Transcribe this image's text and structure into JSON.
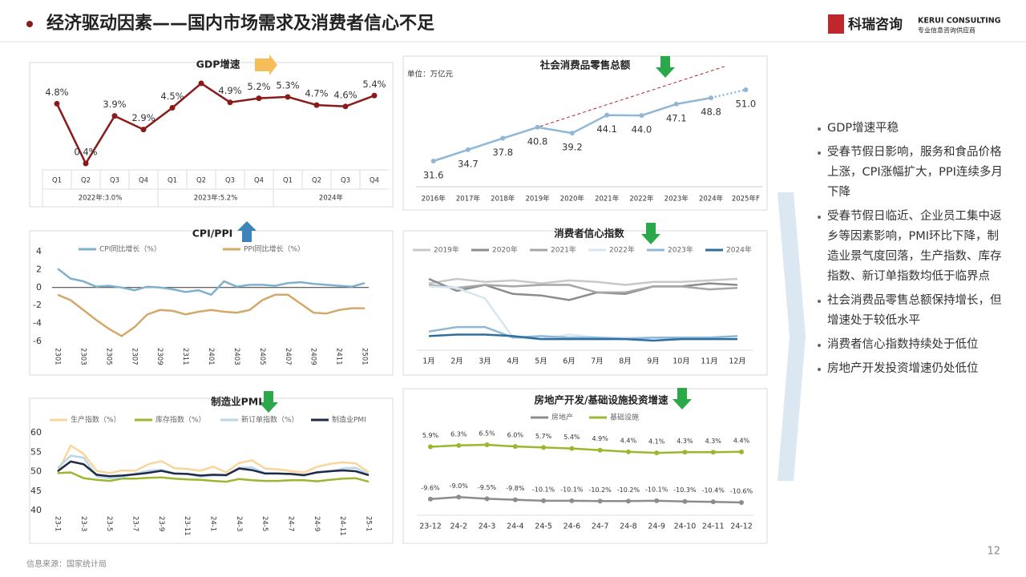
{
  "header": {
    "title": "经济驱动因素——国内市场需求及消费者信心不足",
    "logo_cn": "科瑞咨询",
    "logo_en": "KERUI CONSULTING",
    "logo_tag": "专业信息咨询供应商"
  },
  "chart_data": [
    {
      "type": "line",
      "title": "GDP增速",
      "categories": [
        "Q1",
        "Q2",
        "Q3",
        "Q4",
        "Q1",
        "Q2",
        "Q3",
        "Q4",
        "Q1",
        "Q2",
        "Q3",
        "Q4"
      ],
      "groups": [
        "2022年:3.0%",
        "2023年:5.2%",
        "2024年"
      ],
      "values": [
        4.8,
        0.4,
        3.9,
        2.9,
        4.5,
        6.3,
        4.9,
        5.2,
        5.3,
        4.7,
        4.6,
        5.4
      ],
      "value_labels": [
        "4.8%",
        "0.4%",
        "3.9%",
        "2.9%",
        "4.5%",
        null,
        "4.9%",
        "5.2%",
        "5.3%",
        "4.7%",
        "4.6%",
        "5.4%"
      ],
      "color": "#8b1a1a"
    },
    {
      "type": "line",
      "title": "社会消费品零售总额",
      "unit": "单位：万亿元",
      "categories": [
        "2016年",
        "2017年",
        "2018年",
        "2019年",
        "2020年",
        "2021年",
        "2022年",
        "2023年",
        "2024年",
        "2025年F"
      ],
      "values": [
        31.6,
        34.7,
        37.8,
        40.8,
        39.2,
        44.1,
        44.0,
        47.1,
        48.8,
        51.0
      ],
      "value_labels": [
        "31.6",
        "34.7",
        "37.8",
        "40.8",
        "39.2",
        "44.1",
        "44.0",
        "47.1",
        "48.8",
        "51.0"
      ],
      "color": "#8fb8d8"
    },
    {
      "type": "line",
      "title": "CPI/PPI",
      "categories": [
        "2301",
        null,
        "2303",
        null,
        "2305",
        null,
        "2307",
        null,
        "2309",
        null,
        "2311",
        null,
        "2401",
        null,
        "2403",
        null,
        "2405",
        null,
        "2407",
        null,
        "2409",
        null,
        "2411",
        null,
        "2501"
      ],
      "ylim": [
        -6,
        4
      ],
      "yticks": [
        4,
        2,
        0,
        -2,
        -4,
        -6
      ],
      "series": [
        {
          "name": "CPI同比增长（%）",
          "color": "#7fb0d0",
          "values": [
            2.1,
            1.0,
            0.7,
            0.1,
            0.2,
            0.0,
            -0.3,
            0.1,
            0.0,
            -0.2,
            -0.5,
            -0.3,
            -0.8,
            0.7,
            0.1,
            0.3,
            0.3,
            0.2,
            0.5,
            0.6,
            0.4,
            0.3,
            0.2,
            0.1,
            0.5
          ]
        },
        {
          "name": "PPI同比增长（%）",
          "color": "#d4a86a",
          "values": [
            -0.8,
            -1.4,
            -2.5,
            -3.6,
            -4.6,
            -5.4,
            -4.4,
            -3.0,
            -2.5,
            -2.6,
            -3.0,
            -2.7,
            -2.5,
            -2.7,
            -2.8,
            -2.5,
            -1.4,
            -0.8,
            -0.8,
            -1.8,
            -2.8,
            -2.9,
            -2.5,
            -2.3,
            -2.3
          ]
        }
      ]
    },
    {
      "type": "line",
      "title": "消费者信心指数",
      "categories": [
        "1月",
        "2月",
        "3月",
        "4月",
        "5月",
        "6月",
        "7月",
        "8月",
        "9月",
        "10月",
        "11月",
        "12月"
      ],
      "series": [
        {
          "name": "2019年",
          "color": "#c8c8c8",
          "values": [
            123,
            126,
            124,
            125,
            123,
            125,
            124,
            122,
            124,
            124,
            125,
            126
          ]
        },
        {
          "name": "2020年",
          "color": "#8c8c8c",
          "values": [
            126,
            118,
            122,
            116,
            115,
            112,
            117,
            116,
            121,
            121,
            123,
            122
          ]
        },
        {
          "name": "2021年",
          "color": "#a6a6a6",
          "values": [
            122,
            120,
            122,
            121,
            122,
            122,
            117,
            117,
            121,
            121,
            119,
            120
          ]
        },
        {
          "name": "2022年",
          "color": "#d6e6f2",
          "values": [
            121,
            120,
            113,
            87,
            86,
            89,
            87,
            87,
            87,
            86,
            87,
            88
          ]
        },
        {
          "name": "2023年",
          "color": "#8fb8d8",
          "values": [
            91,
            94,
            94,
            87,
            88,
            87,
            87,
            86,
            87,
            87,
            87,
            88
          ]
        },
        {
          "name": "2024年",
          "color": "#2e6e9e",
          "values": [
            88,
            89,
            89,
            88,
            86,
            86,
            86,
            86,
            85,
            86,
            86,
            86
          ]
        }
      ]
    },
    {
      "type": "line",
      "title": "制造业PMI",
      "categories": [
        "23-1",
        null,
        "23-3",
        null,
        "23-5",
        null,
        "23-7",
        null,
        "23-9",
        null,
        "23-11",
        null,
        "24-1",
        null,
        "24-3",
        null,
        "24-5",
        null,
        "24-7",
        null,
        "24-9",
        null,
        "24-11",
        null,
        "25-1"
      ],
      "ylim": [
        40,
        60
      ],
      "yticks": [
        60,
        55,
        50,
        45,
        40
      ],
      "series": [
        {
          "name": "生产指数（%）",
          "color": "#f9d59a",
          "values": [
            49.8,
            56.7,
            54.6,
            50.2,
            49.6,
            50.3,
            50.2,
            51.9,
            52.7,
            50.9,
            50.7,
            50.2,
            51.3,
            49.8,
            52.2,
            52.9,
            50.8,
            50.6,
            50.1,
            49.8,
            51.2,
            52.0,
            52.4,
            52.1,
            49.8
          ]
        },
        {
          "name": "库存指数（%）",
          "color": "#9ab72f",
          "values": [
            49.6,
            49.8,
            48.3,
            47.9,
            47.6,
            48.2,
            48.2,
            48.4,
            48.5,
            48.2,
            48.0,
            47.9,
            47.6,
            47.4,
            48.1,
            47.8,
            47.6,
            47.6,
            47.8,
            47.8,
            47.5,
            47.9,
            48.2,
            48.3,
            47.4
          ]
        },
        {
          "name": "新订单指数（%）",
          "color": "#b9d6ea",
          "values": [
            50.9,
            54.1,
            53.6,
            48.8,
            48.3,
            48.6,
            49.5,
            50.2,
            50.5,
            49.5,
            49.4,
            48.7,
            49.0,
            49.0,
            51.0,
            51.1,
            49.6,
            49.5,
            49.3,
            48.9,
            49.9,
            50.0,
            50.8,
            51.0,
            49.2
          ]
        },
        {
          "name": "制造业PMI",
          "color": "#1f2a44",
          "values": [
            50.1,
            52.6,
            51.9,
            49.2,
            48.8,
            49.0,
            49.3,
            49.7,
            50.2,
            49.5,
            49.4,
            49.0,
            49.2,
            49.1,
            50.8,
            50.4,
            49.5,
            49.5,
            49.4,
            49.1,
            49.8,
            50.1,
            50.3,
            50.1,
            49.1
          ]
        }
      ]
    },
    {
      "type": "line",
      "title": "房地产开发/基础设施投资增速",
      "categories": [
        "23-12",
        "24-2",
        "24-3",
        "24-4",
        "24-5",
        "24-6",
        "24-7",
        "24-8",
        "24-9",
        "24-10",
        "24-11",
        "24-12"
      ],
      "series": [
        {
          "name": "房地产",
          "color": "#8c8c8c",
          "values": [
            -9.6,
            -9.0,
            -9.5,
            -9.8,
            -10.1,
            -10.1,
            -10.2,
            -10.2,
            -10.1,
            -10.3,
            -10.4,
            -10.6
          ],
          "value_labels": [
            "-9.6%",
            "-9.0%",
            "-9.5%",
            "-9.8%",
            "-10.1%",
            "-10.1%",
            "-10.2%",
            "-10.2%",
            "-10.1%",
            "-10.3%",
            "-10.4%",
            "-10.6%"
          ]
        },
        {
          "name": "基础设施",
          "color": "#9ab72f",
          "values": [
            5.9,
            6.3,
            6.5,
            6.0,
            5.7,
            5.4,
            4.9,
            4.4,
            4.1,
            4.3,
            4.3,
            4.4
          ],
          "value_labels": [
            "5.9%",
            "6.3%",
            "6.5%",
            "6.0%",
            "5.7%",
            "5.4%",
            "4.9%",
            "4.4%",
            "4.1%",
            "4.3%",
            "4.3%",
            "4.4%"
          ]
        }
      ]
    }
  ],
  "bullets": [
    "GDP增速平稳",
    "受春节假日影响，服务和食品价格上涨，CPI涨幅扩大，PPI连续多月下降",
    "受春节假日临近、企业员工集中返乡等因素影响，PMI环比下降，制造业景气度回落，生产指数、库存指数、新订单指数均低于临界点",
    "社会消费品零售总额保持增长，但增速处于较低水平",
    "消费者信心指数持续处于低位",
    "房地产开发投资增速仍处低位"
  ],
  "footer": {
    "source": "信息来源：国家统计局",
    "page": "12"
  }
}
